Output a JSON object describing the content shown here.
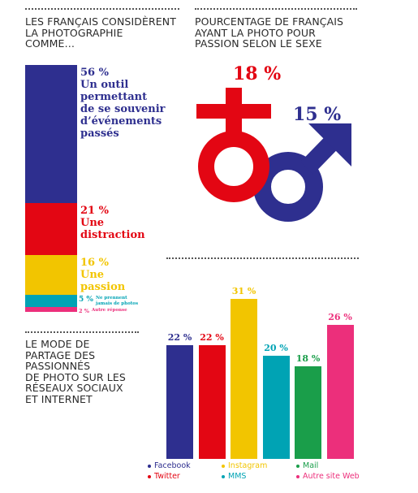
{
  "left_panel": {
    "title": "LES FRANÇAIS CONSIDÈRENT\n LA PHOTOGRAPHIE\nCOMME…",
    "segments": [
      {
        "percent": "56 %",
        "label": "Un outil\npermettant\nde se souvenir\nd’événements\npassés",
        "color": "#2e2f8f"
      },
      {
        "percent": "21 %",
        "label": "Une\ndistraction",
        "color": "#e30613"
      },
      {
        "percent": "16 %",
        "label": "Une\npassion",
        "color": "#f2c500"
      },
      {
        "percent": "5 %",
        "label": "Ne prennent\njamais de photos",
        "color": "#00a3b4"
      },
      {
        "percent": "2 %",
        "label": "Autre réponse",
        "color": "#ec2f7b"
      }
    ]
  },
  "right_panel": {
    "title": "POURCENTAGE DE FRANÇAIS\nAYANT LA PHOTO POUR\nPASSION SELON LE SEXE",
    "female_value": "18 %",
    "male_value": "15 %",
    "female_color": "#e30613",
    "male_color": "#2e2f8f"
  },
  "bottom_panel": {
    "title": "LE MODE DE\nPARTAGE DES\nPASSIONNÉS\nDE PHOTO SUR LES\nRÉSEAUX SOCIAUX\nET INTERNET"
  },
  "chart_data": [
    {
      "type": "bar",
      "title": "LES FRANÇAIS CONSIDÈRENT LA PHOTOGRAPHIE COMME…",
      "categories": [
        "Un outil permettant de se souvenir d’événements passés",
        "Une distraction",
        "Une passion",
        "Ne prennent jamais de photos",
        "Autre réponse"
      ],
      "values": [
        56,
        21,
        16,
        5,
        2
      ],
      "stacked": true
    },
    {
      "type": "bar",
      "title": "POURCENTAGE DE FRANÇAIS AYANT LA PHOTO POUR PASSION SELON LE SEXE",
      "categories": [
        "Femmes",
        "Hommes"
      ],
      "values": [
        18,
        15
      ]
    },
    {
      "type": "bar",
      "title": "LE MODE DE PARTAGE DES PASSIONNÉS DE PHOTO SUR LES RÉSEAUX SOCIAUX ET INTERNET",
      "categories": [
        "Facebook",
        "Twitter",
        "Instagram",
        "MMS",
        "Mail",
        "Autre site Web"
      ],
      "values": [
        22,
        22,
        31,
        20,
        18,
        26
      ],
      "labels": [
        "22 %",
        "22 %",
        "31 %",
        "20 %",
        "18 %",
        "26 %"
      ],
      "colors": [
        "#2e2f8f",
        "#e30613",
        "#f2c500",
        "#00a3b4",
        "#1a9e4a",
        "#ec2f7b"
      ],
      "ylim": [
        0,
        34
      ],
      "grid": false,
      "legend": "bottom"
    }
  ]
}
